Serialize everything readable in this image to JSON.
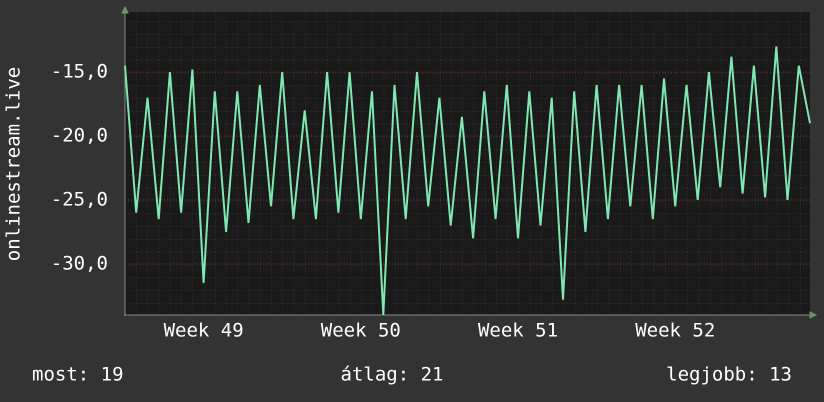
{
  "chart_data": {
    "type": "line",
    "y_label": "onlinestream.live",
    "x": [
      0,
      0.5,
      1,
      1.5,
      2,
      2.5,
      3,
      3.5,
      4,
      4.5,
      5,
      5.5,
      6,
      6.5,
      7,
      7.5,
      8,
      8.5,
      9,
      9.5,
      10,
      10.5,
      11,
      11.5,
      12,
      12.5,
      13,
      13.5,
      14,
      14.5,
      15,
      15.5,
      16,
      16.5,
      17,
      17.5,
      18,
      18.5,
      19,
      19.5,
      20,
      20.5,
      21,
      21.5,
      22,
      22.5,
      23,
      23.5,
      24,
      24.5,
      25,
      25.5,
      26,
      26.5,
      27,
      27.5,
      28,
      28.5,
      29,
      29.5,
      30,
      30.5
    ],
    "series": [
      {
        "name": "onlinestream.live",
        "color": "#7ee8b0",
        "values": [
          -14.5,
          -26,
          -17,
          -26.5,
          -15,
          -26,
          -14.8,
          -31.5,
          -16.5,
          -27.5,
          -16.5,
          -26.8,
          -16,
          -25.5,
          -15,
          -26.5,
          -18,
          -26.5,
          -15,
          -26,
          -15,
          -26.5,
          -16.5,
          -34,
          -16,
          -26.5,
          -15,
          -25.5,
          -17,
          -27,
          -18.5,
          -28,
          -16.5,
          -26.5,
          -16,
          -28,
          -16.5,
          -27,
          -17,
          -32.8,
          -16.5,
          -27.5,
          -16,
          -26.5,
          -16,
          -25.5,
          -16,
          -26.5,
          -15.5,
          -25.5,
          -16,
          -25,
          -15,
          -24,
          -13.8,
          -24.5,
          -14.5,
          -24.8,
          -13,
          -25,
          -14.5,
          -19
        ]
      }
    ],
    "xlim": [
      0,
      30.5
    ],
    "xticks": [
      {
        "value": 3.5,
        "label": "Week 49"
      },
      {
        "value": 10.5,
        "label": "Week 50"
      },
      {
        "value": 17.5,
        "label": "Week 51"
      },
      {
        "value": 24.5,
        "label": "Week 52"
      }
    ],
    "ylim": [
      -34,
      -10.3
    ],
    "yticks": [
      {
        "value": -15,
        "label": "-15,0"
      },
      {
        "value": -20,
        "label": "-20,0"
      },
      {
        "value": -25,
        "label": "-25,0"
      },
      {
        "value": -30,
        "label": "-30,0"
      }
    ],
    "grid": true,
    "footer": [
      "most: 19",
      "átlag: 21",
      "legjobb: 13"
    ]
  }
}
